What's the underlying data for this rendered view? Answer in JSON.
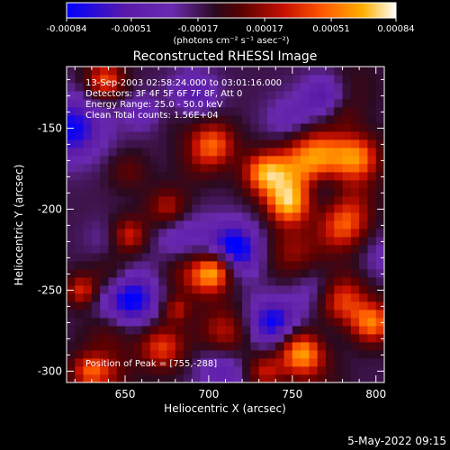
{
  "chart_data": {
    "type": "heatmap",
    "title": "Reconstructed RHESSI Image",
    "xlabel": "Heliocentric X (arcsec)",
    "ylabel": "Heliocentric Y (arcsec)",
    "xlim": [
      615,
      805
    ],
    "ylim": [
      -307,
      -112
    ],
    "x_ticks": [
      650,
      700,
      750,
      800
    ],
    "y_ticks": [
      -150,
      -200,
      -250,
      -300
    ],
    "colorbar": {
      "range": [
        -0.00084,
        0.00084
      ],
      "tick_values": [
        -0.00084,
        -0.00051,
        -0.00017,
        0.00017,
        0.00051,
        0.00084
      ],
      "tick_labels": [
        "-0.00084",
        "-0.00051",
        "-0.00017",
        "0.00017",
        "0.00051",
        "0.00084"
      ],
      "unit_label": "(photons cm⁻² s⁻¹ asec⁻²)",
      "colormap": [
        "#0000ff",
        "#5a1aa8",
        "#6a2ab0",
        "#2a0a20",
        "#600000",
        "#c81000",
        "#ff5a00",
        "#ffb000",
        "#ffffff"
      ]
    },
    "annotations": [
      "13-Sep-2003 02:58:24.000 to 03:01:16.000",
      "Detectors: 3F 4F 5F 6F 7F 8F, Att 0",
      "Energy Range: 25.0 - 50.0 keV",
      "Clean    Total counts: 1.56E+04"
    ],
    "peak_label": "Position of Peak = [755,-288]",
    "peak_position": [
      755,
      -288
    ],
    "bright_sources": [
      {
        "x": 763,
        "y": -168,
        "level": 0.95,
        "r": 13
      },
      {
        "x": 788,
        "y": -168,
        "level": 0.85,
        "r": 10
      },
      {
        "x": 782,
        "y": -210,
        "level": 0.75,
        "r": 11
      },
      {
        "x": 748,
        "y": -197,
        "level": 0.8,
        "r": 9
      },
      {
        "x": 702,
        "y": -160,
        "level": 0.75,
        "r": 10
      },
      {
        "x": 733,
        "y": -177,
        "level": 0.7,
        "r": 9
      },
      {
        "x": 676,
        "y": -200,
        "level": 0.6,
        "r": 9
      },
      {
        "x": 652,
        "y": -216,
        "level": 0.6,
        "r": 8
      },
      {
        "x": 700,
        "y": -240,
        "level": 0.75,
        "r": 10
      },
      {
        "x": 778,
        "y": -255,
        "level": 0.75,
        "r": 11
      },
      {
        "x": 798,
        "y": -270,
        "level": 0.8,
        "r": 9
      },
      {
        "x": 755,
        "y": -288,
        "level": 1.0,
        "r": 10
      },
      {
        "x": 672,
        "y": -285,
        "level": 0.65,
        "r": 10
      },
      {
        "x": 638,
        "y": -120,
        "level": 0.7,
        "r": 8
      },
      {
        "x": 624,
        "y": -250,
        "level": 0.6,
        "r": 7
      },
      {
        "x": 733,
        "y": -300,
        "level": 0.55,
        "r": 8
      },
      {
        "x": 628,
        "y": -300,
        "level": 0.6,
        "r": 8
      }
    ],
    "dim_regions": [
      {
        "x": 618,
        "y": -150,
        "level": -0.6,
        "r": 14
      },
      {
        "x": 715,
        "y": -225,
        "level": -0.75,
        "r": 12
      },
      {
        "x": 652,
        "y": -255,
        "level": -0.7,
        "r": 13
      },
      {
        "x": 738,
        "y": -270,
        "level": -0.6,
        "r": 11
      },
      {
        "x": 770,
        "y": -130,
        "level": -0.5,
        "r": 10
      },
      {
        "x": 690,
        "y": -130,
        "level": -0.5,
        "r": 10
      }
    ]
  },
  "timestamp": "5-May-2022 09:15"
}
